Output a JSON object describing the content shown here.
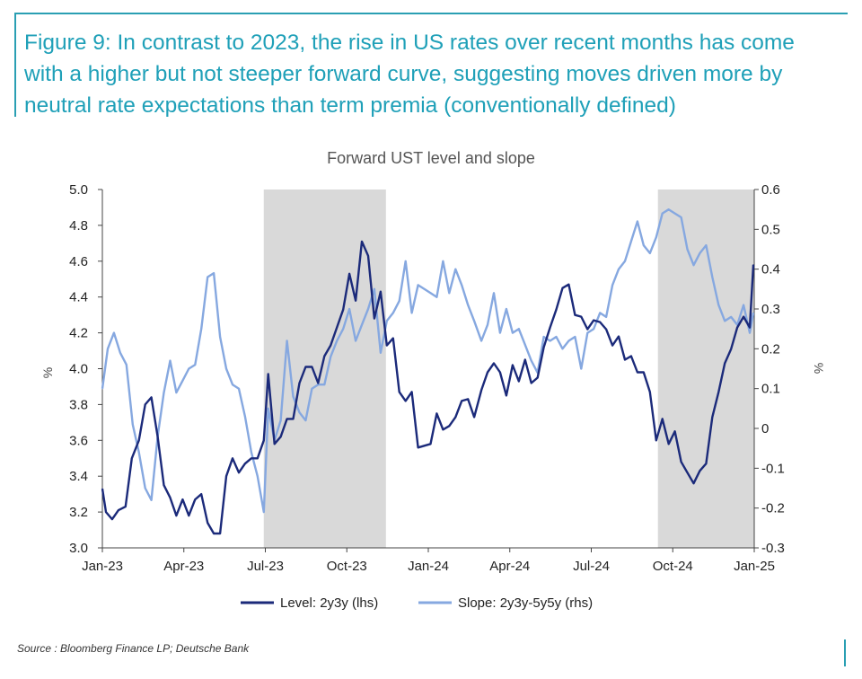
{
  "figure": {
    "title": "Figure 9: In contrast to 2023, the rise in US rates over recent months has come with a higher but not steeper forward curve, suggesting moves driven more by neutral rate expectations than term premia (conventionally defined)",
    "source": "Source : Bloomberg Finance LP; Deutsche Bank"
  },
  "colors": {
    "title": "#1fa0b8",
    "frame": "#2a9fb3",
    "level_line": "#1b2a7a",
    "slope_line": "#86a8e0",
    "shade": "#d9d9d9"
  },
  "chart_data": {
    "type": "line",
    "title": "Forward UST level and slope",
    "ylabel_left": "%",
    "ylabel_right": "%",
    "ylim_left": [
      3.0,
      5.0
    ],
    "ylim_right": [
      -0.3,
      0.6
    ],
    "yticks_left": [
      "5.0",
      "4.8",
      "4.6",
      "4.4",
      "4.2",
      "4.0",
      "3.8",
      "3.6",
      "3.4",
      "3.2",
      "3.0"
    ],
    "yticks_right": [
      "0.6",
      "0.5",
      "0.4",
      "0.3",
      "0.2",
      "0.1",
      "0",
      "-0.1",
      "-0.2",
      "-0.3"
    ],
    "x_tick_labels": [
      "Jan-23",
      "Apr-23",
      "Jul-23",
      "Oct-23",
      "Jan-24",
      "Apr-24",
      "Jul-24",
      "Oct-24",
      "Jan-25"
    ],
    "xlim": [
      "2023-01-01",
      "2025-01-01"
    ],
    "grid": false,
    "legend_position": "bottom",
    "shaded_periods": [
      {
        "start": "2023-07-01",
        "end": "2023-11-15"
      },
      {
        "start": "2024-09-15",
        "end": "2025-01-01"
      }
    ],
    "series": [
      {
        "name": "Level: 2y3y (lhs)",
        "axis": "left",
        "points": [
          [
            "2023-01-01",
            3.33
          ],
          [
            "2023-01-05",
            3.2
          ],
          [
            "2023-01-12",
            3.16
          ],
          [
            "2023-01-19",
            3.21
          ],
          [
            "2023-01-27",
            3.23
          ],
          [
            "2023-02-03",
            3.5
          ],
          [
            "2023-02-11",
            3.6
          ],
          [
            "2023-02-18",
            3.8
          ],
          [
            "2023-02-25",
            3.84
          ],
          [
            "2023-03-04",
            3.62
          ],
          [
            "2023-03-11",
            3.35
          ],
          [
            "2023-03-18",
            3.28
          ],
          [
            "2023-03-25",
            3.18
          ],
          [
            "2023-04-01",
            3.27
          ],
          [
            "2023-04-08",
            3.18
          ],
          [
            "2023-04-15",
            3.27
          ],
          [
            "2023-04-22",
            3.3
          ],
          [
            "2023-04-29",
            3.14
          ],
          [
            "2023-05-06",
            3.08
          ],
          [
            "2023-05-13",
            3.08
          ],
          [
            "2023-05-20",
            3.4
          ],
          [
            "2023-05-27",
            3.5
          ],
          [
            "2023-06-03",
            3.42
          ],
          [
            "2023-06-10",
            3.47
          ],
          [
            "2023-06-17",
            3.5
          ],
          [
            "2023-06-24",
            3.5
          ],
          [
            "2023-07-01",
            3.6
          ],
          [
            "2023-07-06",
            3.97
          ],
          [
            "2023-07-13",
            3.58
          ],
          [
            "2023-07-20",
            3.62
          ],
          [
            "2023-07-27",
            3.72
          ],
          [
            "2023-08-03",
            3.72
          ],
          [
            "2023-08-10",
            3.92
          ],
          [
            "2023-08-17",
            4.01
          ],
          [
            "2023-08-24",
            4.01
          ],
          [
            "2023-08-31",
            3.92
          ],
          [
            "2023-09-07",
            4.07
          ],
          [
            "2023-09-14",
            4.13
          ],
          [
            "2023-09-21",
            4.23
          ],
          [
            "2023-09-28",
            4.33
          ],
          [
            "2023-10-05",
            4.53
          ],
          [
            "2023-10-12",
            4.38
          ],
          [
            "2023-10-19",
            4.71
          ],
          [
            "2023-10-26",
            4.63
          ],
          [
            "2023-11-02",
            4.28
          ],
          [
            "2023-11-09",
            4.43
          ],
          [
            "2023-11-16",
            4.13
          ],
          [
            "2023-11-23",
            4.17
          ],
          [
            "2023-11-30",
            3.87
          ],
          [
            "2023-12-07",
            3.82
          ],
          [
            "2023-12-14",
            3.87
          ],
          [
            "2023-12-21",
            3.56
          ],
          [
            "2023-12-28",
            3.57
          ],
          [
            "2024-01-04",
            3.58
          ],
          [
            "2024-01-11",
            3.75
          ],
          [
            "2024-01-18",
            3.66
          ],
          [
            "2024-01-25",
            3.68
          ],
          [
            "2024-02-01",
            3.73
          ],
          [
            "2024-02-08",
            3.82
          ],
          [
            "2024-02-15",
            3.83
          ],
          [
            "2024-02-22",
            3.73
          ],
          [
            "2024-03-01",
            3.88
          ],
          [
            "2024-03-08",
            3.98
          ],
          [
            "2024-03-15",
            4.03
          ],
          [
            "2024-03-22",
            3.98
          ],
          [
            "2024-03-29",
            3.85
          ],
          [
            "2024-04-05",
            4.02
          ],
          [
            "2024-04-12",
            3.93
          ],
          [
            "2024-04-19",
            4.05
          ],
          [
            "2024-04-26",
            3.92
          ],
          [
            "2024-05-03",
            3.95
          ],
          [
            "2024-05-10",
            4.12
          ],
          [
            "2024-05-17",
            4.23
          ],
          [
            "2024-05-24",
            4.33
          ],
          [
            "2024-05-31",
            4.45
          ],
          [
            "2024-06-07",
            4.47
          ],
          [
            "2024-06-14",
            4.3
          ],
          [
            "2024-06-21",
            4.29
          ],
          [
            "2024-06-28",
            4.22
          ],
          [
            "2024-07-05",
            4.27
          ],
          [
            "2024-07-12",
            4.26
          ],
          [
            "2024-07-19",
            4.22
          ],
          [
            "2024-07-26",
            4.13
          ],
          [
            "2024-08-02",
            4.18
          ],
          [
            "2024-08-09",
            4.05
          ],
          [
            "2024-08-16",
            4.07
          ],
          [
            "2024-08-23",
            3.98
          ],
          [
            "2024-08-30",
            3.98
          ],
          [
            "2024-09-06",
            3.87
          ],
          [
            "2024-09-13",
            3.6
          ],
          [
            "2024-09-20",
            3.72
          ],
          [
            "2024-09-27",
            3.58
          ],
          [
            "2024-10-04",
            3.65
          ],
          [
            "2024-10-11",
            3.48
          ],
          [
            "2024-10-18",
            3.42
          ],
          [
            "2024-10-25",
            3.36
          ],
          [
            "2024-11-01",
            3.43
          ],
          [
            "2024-11-08",
            3.47
          ],
          [
            "2024-11-15",
            3.73
          ],
          [
            "2024-11-22",
            3.87
          ],
          [
            "2024-11-29",
            4.03
          ],
          [
            "2024-12-06",
            4.11
          ],
          [
            "2024-12-13",
            4.23
          ],
          [
            "2024-12-20",
            4.29
          ],
          [
            "2024-12-27",
            4.23
          ],
          [
            "2024-12-31",
            4.58
          ]
        ]
      },
      {
        "name": "Slope: 2y3y-5y5y (rhs)",
        "axis": "right",
        "points": [
          [
            "2023-01-01",
            0.1
          ],
          [
            "2023-01-07",
            0.2
          ],
          [
            "2023-01-14",
            0.24
          ],
          [
            "2023-01-21",
            0.19
          ],
          [
            "2023-01-28",
            0.16
          ],
          [
            "2023-02-04",
            0.01
          ],
          [
            "2023-02-11",
            -0.06
          ],
          [
            "2023-02-18",
            -0.15
          ],
          [
            "2023-02-25",
            -0.18
          ],
          [
            "2023-03-04",
            -0.02
          ],
          [
            "2023-03-11",
            0.09
          ],
          [
            "2023-03-18",
            0.17
          ],
          [
            "2023-03-25",
            0.09
          ],
          [
            "2023-04-01",
            0.12
          ],
          [
            "2023-04-08",
            0.15
          ],
          [
            "2023-04-15",
            0.16
          ],
          [
            "2023-04-22",
            0.25
          ],
          [
            "2023-04-29",
            0.38
          ],
          [
            "2023-05-06",
            0.39
          ],
          [
            "2023-05-13",
            0.23
          ],
          [
            "2023-05-20",
            0.15
          ],
          [
            "2023-05-27",
            0.11
          ],
          [
            "2023-06-03",
            0.1
          ],
          [
            "2023-06-10",
            0.03
          ],
          [
            "2023-06-17",
            -0.06
          ],
          [
            "2023-06-24",
            -0.12
          ],
          [
            "2023-07-01",
            -0.21
          ],
          [
            "2023-07-06",
            0.05
          ],
          [
            "2023-07-13",
            -0.03
          ],
          [
            "2023-07-20",
            0.02
          ],
          [
            "2023-07-27",
            0.22
          ],
          [
            "2023-08-03",
            0.08
          ],
          [
            "2023-08-10",
            0.04
          ],
          [
            "2023-08-17",
            0.02
          ],
          [
            "2023-08-24",
            0.1
          ],
          [
            "2023-08-31",
            0.11
          ],
          [
            "2023-09-07",
            0.11
          ],
          [
            "2023-09-14",
            0.18
          ],
          [
            "2023-09-21",
            0.22
          ],
          [
            "2023-09-28",
            0.25
          ],
          [
            "2023-10-05",
            0.3
          ],
          [
            "2023-10-12",
            0.22
          ],
          [
            "2023-10-19",
            0.26
          ],
          [
            "2023-10-26",
            0.3
          ],
          [
            "2023-11-02",
            0.35
          ],
          [
            "2023-11-09",
            0.19
          ],
          [
            "2023-11-16",
            0.27
          ],
          [
            "2023-11-23",
            0.29
          ],
          [
            "2023-11-30",
            0.32
          ],
          [
            "2023-12-07",
            0.42
          ],
          [
            "2023-12-14",
            0.29
          ],
          [
            "2023-12-21",
            0.36
          ],
          [
            "2023-12-28",
            0.35
          ],
          [
            "2024-01-04",
            0.34
          ],
          [
            "2024-01-11",
            0.33
          ],
          [
            "2024-01-18",
            0.42
          ],
          [
            "2024-01-25",
            0.34
          ],
          [
            "2024-02-01",
            0.4
          ],
          [
            "2024-02-08",
            0.36
          ],
          [
            "2024-02-15",
            0.31
          ],
          [
            "2024-02-22",
            0.27
          ],
          [
            "2024-03-01",
            0.22
          ],
          [
            "2024-03-08",
            0.26
          ],
          [
            "2024-03-15",
            0.34
          ],
          [
            "2024-03-22",
            0.24
          ],
          [
            "2024-03-29",
            0.3
          ],
          [
            "2024-04-05",
            0.24
          ],
          [
            "2024-04-12",
            0.25
          ],
          [
            "2024-04-19",
            0.21
          ],
          [
            "2024-04-26",
            0.17
          ],
          [
            "2024-05-03",
            0.14
          ],
          [
            "2024-05-10",
            0.23
          ],
          [
            "2024-05-17",
            0.22
          ],
          [
            "2024-05-24",
            0.23
          ],
          [
            "2024-05-31",
            0.2
          ],
          [
            "2024-06-07",
            0.22
          ],
          [
            "2024-06-14",
            0.23
          ],
          [
            "2024-06-21",
            0.15
          ],
          [
            "2024-06-28",
            0.24
          ],
          [
            "2024-07-05",
            0.25
          ],
          [
            "2024-07-12",
            0.29
          ],
          [
            "2024-07-19",
            0.28
          ],
          [
            "2024-07-26",
            0.36
          ],
          [
            "2024-08-02",
            0.4
          ],
          [
            "2024-08-09",
            0.42
          ],
          [
            "2024-08-16",
            0.47
          ],
          [
            "2024-08-23",
            0.52
          ],
          [
            "2024-08-30",
            0.46
          ],
          [
            "2024-09-06",
            0.44
          ],
          [
            "2024-09-13",
            0.48
          ],
          [
            "2024-09-20",
            0.54
          ],
          [
            "2024-09-27",
            0.55
          ],
          [
            "2024-10-04",
            0.54
          ],
          [
            "2024-10-11",
            0.53
          ],
          [
            "2024-10-18",
            0.45
          ],
          [
            "2024-10-25",
            0.41
          ],
          [
            "2024-11-01",
            0.44
          ],
          [
            "2024-11-08",
            0.46
          ],
          [
            "2024-11-15",
            0.38
          ],
          [
            "2024-11-22",
            0.31
          ],
          [
            "2024-11-29",
            0.27
          ],
          [
            "2024-12-06",
            0.28
          ],
          [
            "2024-12-13",
            0.26
          ],
          [
            "2024-12-20",
            0.31
          ],
          [
            "2024-12-27",
            0.24
          ],
          [
            "2024-12-31",
            0.29
          ]
        ]
      }
    ]
  }
}
